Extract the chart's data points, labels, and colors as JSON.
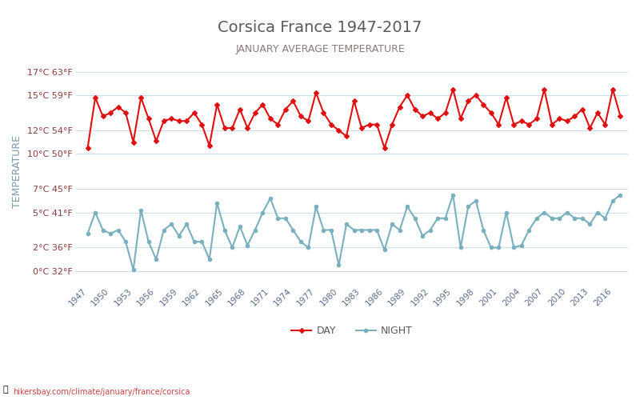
{
  "title": "Corsica France 1947-2017",
  "subtitle": "JANUARY AVERAGE TEMPERATURE",
  "ylabel": "TEMPERATURE",
  "footer": "hikersbay.com/climate/january/france/corsica",
  "title_color": "#5a5a5a",
  "subtitle_color": "#8a7a7a",
  "ylabel_color": "#7a9aaa",
  "tick_label_color": "#8b3a3a",
  "xlabel_color": "#5a6a8a",
  "background_color": "#ffffff",
  "grid_color": "#ccddee",
  "years": [
    1947,
    1948,
    1949,
    1950,
    1951,
    1952,
    1953,
    1954,
    1955,
    1956,
    1957,
    1958,
    1959,
    1960,
    1961,
    1962,
    1963,
    1964,
    1965,
    1966,
    1967,
    1968,
    1969,
    1970,
    1971,
    1972,
    1973,
    1974,
    1975,
    1976,
    1977,
    1978,
    1979,
    1980,
    1981,
    1982,
    1983,
    1984,
    1985,
    1986,
    1987,
    1988,
    1989,
    1990,
    1991,
    1992,
    1993,
    1994,
    1995,
    1996,
    1997,
    1998,
    1999,
    2000,
    2001,
    2002,
    2003,
    2004,
    2005,
    2006,
    2007,
    2008,
    2009,
    2010,
    2011,
    2012,
    2013,
    2014,
    2015,
    2016,
    2017
  ],
  "day_temps": [
    10.5,
    14.8,
    13.2,
    13.5,
    14.0,
    13.5,
    11.0,
    14.8,
    13.0,
    11.1,
    12.8,
    13.0,
    12.8,
    12.8,
    13.5,
    12.5,
    10.7,
    14.2,
    12.2,
    12.2,
    13.8,
    12.2,
    13.5,
    14.2,
    13.0,
    12.5,
    13.8,
    14.5,
    13.2,
    12.8,
    15.2,
    13.5,
    12.5,
    12.0,
    11.5,
    14.5,
    12.2,
    12.5,
    12.5,
    10.5,
    12.5,
    14.0,
    15.0,
    13.8,
    13.2,
    13.5,
    13.0,
    13.5,
    15.5,
    13.0,
    14.5,
    15.0,
    14.2,
    13.5,
    12.5,
    14.8,
    12.5,
    12.8,
    12.5,
    13.0,
    15.5,
    12.5,
    13.0,
    12.8,
    13.2,
    13.8,
    12.2,
    13.5,
    12.5,
    15.5,
    13.2
  ],
  "night_temps": [
    3.2,
    5.0,
    3.5,
    3.2,
    3.5,
    2.5,
    0.1,
    5.2,
    2.5,
    1.0,
    3.5,
    4.0,
    3.0,
    4.0,
    2.5,
    2.5,
    1.0,
    5.8,
    3.5,
    2.0,
    3.8,
    2.2,
    3.5,
    5.0,
    6.2,
    4.5,
    4.5,
    3.5,
    2.5,
    2.0,
    5.5,
    3.5,
    3.5,
    0.5,
    4.0,
    3.5,
    3.5,
    3.5,
    3.5,
    1.8,
    4.0,
    3.5,
    5.5,
    4.5,
    3.0,
    3.5,
    4.5,
    4.5,
    6.5,
    2.0,
    5.5,
    6.0,
    3.5,
    2.0,
    2.0,
    5.0,
    2.0,
    2.2,
    3.5,
    4.5,
    5.0,
    4.5,
    4.5,
    5.0,
    4.5,
    4.5,
    4.0,
    5.0,
    4.5,
    6.0,
    6.5
  ],
  "day_color": "#e01010",
  "night_color": "#7ab0be",
  "day_marker": "D",
  "night_marker": "o",
  "marker_size": 3,
  "line_width": 1.5,
  "ylim": [
    -1,
    18
  ],
  "yticks_c": [
    0,
    2,
    5,
    7,
    10,
    12,
    15,
    17
  ],
  "yticks_f": [
    32,
    36,
    41,
    45,
    50,
    54,
    59,
    63
  ],
  "xtick_years": [
    1947,
    1950,
    1953,
    1956,
    1959,
    1962,
    1965,
    1968,
    1971,
    1974,
    1977,
    1980,
    1983,
    1986,
    1989,
    1992,
    1995,
    1998,
    2001,
    2004,
    2007,
    2010,
    2013,
    2016
  ]
}
